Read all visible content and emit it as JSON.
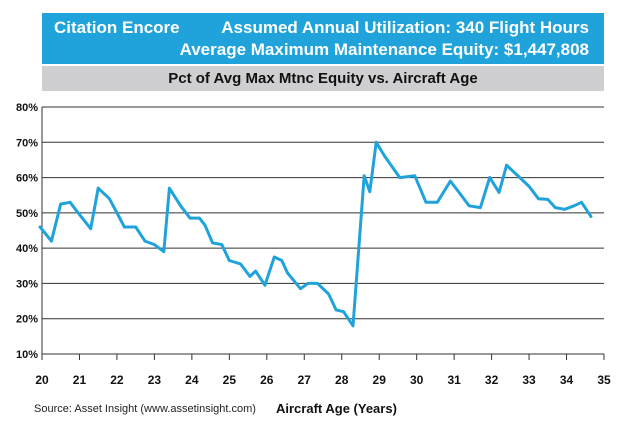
{
  "header": {
    "model": "Citation Encore",
    "utilization": "Assumed Annual Utilization: 340 Flight Hours",
    "equity": "Average Maximum Maintenance Equity: $1,447,808"
  },
  "subtitle": "Pct of Avg Max Mtnc Equity vs. Aircraft Age",
  "source": "Source: Asset Insight (www.assetinsight.com)",
  "colors": {
    "line": "#1fa3da",
    "header_bg": "#1fa3da",
    "subtitle_bg": "#cfcfd1"
  },
  "chart_data": {
    "type": "line",
    "title": "Pct of Avg Max Mtnc Equity vs. Aircraft Age",
    "xlabel": "Aircraft Age (Years)",
    "ylabel": "",
    "xlim": [
      20,
      35
    ],
    "ylim": [
      10,
      80
    ],
    "x_ticks": [
      "20",
      "21",
      "22",
      "23",
      "24",
      "25",
      "26",
      "27",
      "28",
      "29",
      "30",
      "31",
      "32",
      "33",
      "34",
      "35"
    ],
    "y_ticks": [
      "10%",
      "20%",
      "30%",
      "40%",
      "50%",
      "60%",
      "70%",
      "80%"
    ],
    "grid": "horizontal",
    "series": [
      {
        "name": "Pct of Avg Max Mtnc Equity",
        "x": [
          19.95,
          20.25,
          20.5,
          20.75,
          21.0,
          21.3,
          21.5,
          21.8,
          22.2,
          22.5,
          22.75,
          23.0,
          23.25,
          23.4,
          23.7,
          23.95,
          24.2,
          24.35,
          24.55,
          24.8,
          25.0,
          25.3,
          25.55,
          25.7,
          25.95,
          26.2,
          26.4,
          26.55,
          26.9,
          27.1,
          27.35,
          27.65,
          27.85,
          28.05,
          28.3,
          28.6,
          28.75,
          28.92,
          29.15,
          29.55,
          29.95,
          30.25,
          30.55,
          30.9,
          31.15,
          31.4,
          31.7,
          31.95,
          32.2,
          32.4,
          32.65,
          33.0,
          33.25,
          33.5,
          33.7,
          33.95,
          34.2,
          34.4,
          34.65
        ],
        "y": [
          46,
          42,
          52.5,
          53,
          49.5,
          45.5,
          57,
          54,
          46,
          46,
          42,
          41,
          39,
          57,
          52,
          48.5,
          48.5,
          46.5,
          41.5,
          41,
          36.5,
          35.5,
          32,
          33.5,
          29.5,
          37.5,
          36.5,
          33,
          28.5,
          30,
          30,
          27,
          22.5,
          22,
          18,
          60.5,
          56,
          70,
          66,
          60,
          60.5,
          53,
          53,
          59,
          55.5,
          52,
          51.5,
          60,
          55.8,
          63.5,
          61,
          57.5,
          54,
          53.8,
          51.5,
          51,
          52,
          53,
          49
        ]
      }
    ]
  }
}
